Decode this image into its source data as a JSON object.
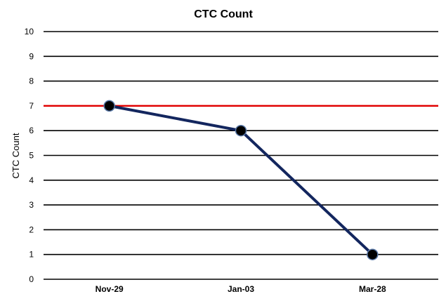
{
  "chart_data": {
    "type": "line",
    "title": "CTC Count",
    "xlabel": "",
    "ylabel": "CTC Count",
    "categories": [
      "Nov-29",
      "Jan-03",
      "Mar-28"
    ],
    "series": [
      {
        "values": [
          7,
          6,
          1
        ],
        "color": "#13265e",
        "marker_color": "#000000"
      }
    ],
    "reference_line": {
      "value": 7,
      "color": "#e00000"
    },
    "ylim": [
      0,
      10
    ],
    "yticks": [
      0,
      1,
      2,
      3,
      4,
      5,
      6,
      7,
      8,
      9,
      10
    ],
    "grid": true,
    "gridline_color": "#000000"
  }
}
